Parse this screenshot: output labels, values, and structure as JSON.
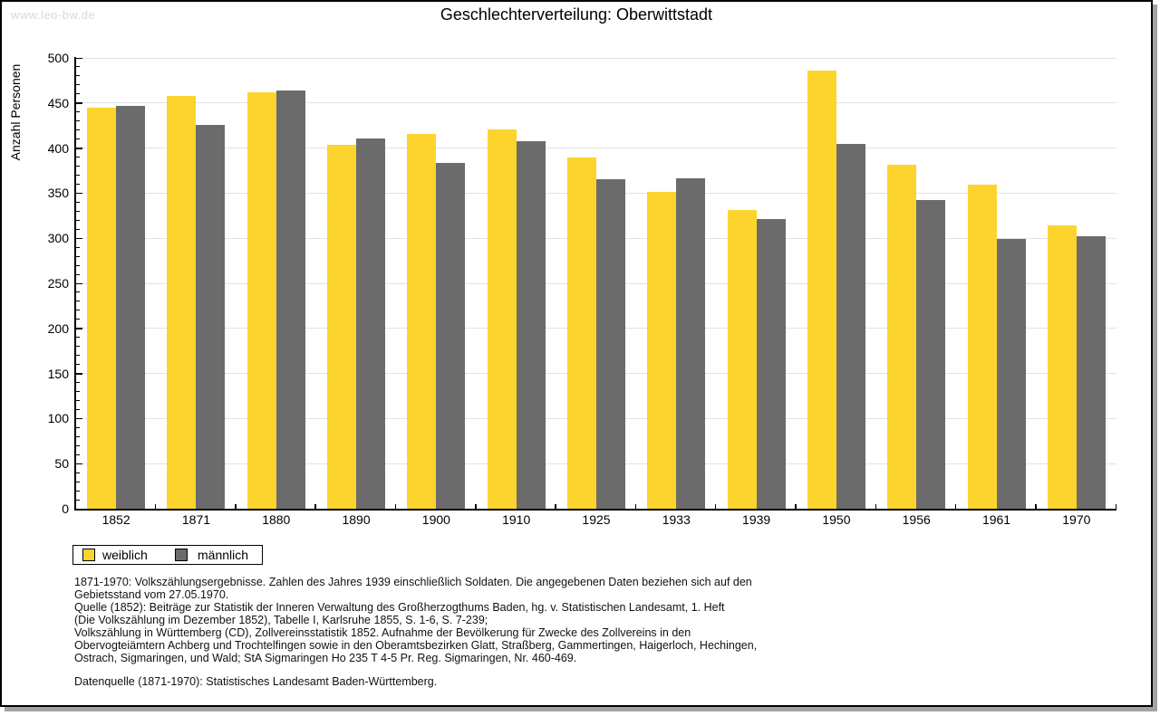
{
  "watermark": "www.leo-bw.de",
  "title": "Geschlechterverteilung: Oberwittstadt",
  "colors": {
    "weiblich": "#fcd42d",
    "maennlich": "#6b6b6b",
    "gridline": "#e2e2e2",
    "axis": "#000000",
    "watermark": "#d9d9d9",
    "shadow": "#a3a3a3"
  },
  "chart_data": {
    "type": "bar",
    "title": "Geschlechterverteilung: Oberwittstadt",
    "xlabel": "",
    "ylabel": "Anzahl Personen",
    "categories": [
      "1852",
      "1871",
      "1880",
      "1890",
      "1900",
      "1910",
      "1925",
      "1933",
      "1939",
      "1950",
      "1956",
      "1961",
      "1970"
    ],
    "series": [
      {
        "name": "weiblich",
        "color": "#fcd42d",
        "values": [
          445,
          458,
          462,
          404,
          416,
          421,
          390,
          351,
          331,
          486,
          382,
          359,
          314
        ]
      },
      {
        "name": "männlich",
        "color": "#6b6b6b",
        "values": [
          447,
          426,
          464,
          411,
          384,
          408,
          365,
          366,
          321,
          405,
          342,
          299,
          302
        ]
      }
    ],
    "ylim": [
      0,
      500
    ],
    "ytick_interval": 50,
    "yminor_interval": 10,
    "grid": "horizontal",
    "legend_position": "bottom-left"
  },
  "legend": {
    "items": [
      {
        "label": "weiblich",
        "color": "#fcd42d"
      },
      {
        "label": "männlich",
        "color": "#6b6b6b"
      }
    ]
  },
  "footnotes": [
    "1871-1970: Volkszählungsergebnisse. Zahlen des Jahres 1939 einschließlich Soldaten. Die angegebenen Daten beziehen sich auf den",
    "Gebietsstand vom 27.05.1970.",
    "Quelle (1852): Beiträge zur Statistik der Inneren Verwaltung des Großherzogthums Baden, hg. v. Statistischen Landesamt, 1. Heft",
    "(Die Volkszählung im Dezember 1852), Tabelle I, Karlsruhe 1855, S. 1-6, S. 7-239;",
    "Volkszählung in Württemberg (CD), Zollvereinsstatistik 1852. Aufnahme der Bevölkerung für Zwecke des Zollvereins in den",
    "Obervogteiämtern Achberg und Trochtelfingen sowie in den Oberamtsbezirken Glatt, Straßberg, Gammertingen, Haigerloch, Hechingen,",
    "Ostrach, Sigmaringen, und Wald; StA Sigmaringen Ho 235 T 4-5 Pr. Reg. Sigmaringen, Nr. 460-469."
  ],
  "datasource": "Datenquelle (1871-1970): Statistisches Landesamt Baden-Württemberg."
}
